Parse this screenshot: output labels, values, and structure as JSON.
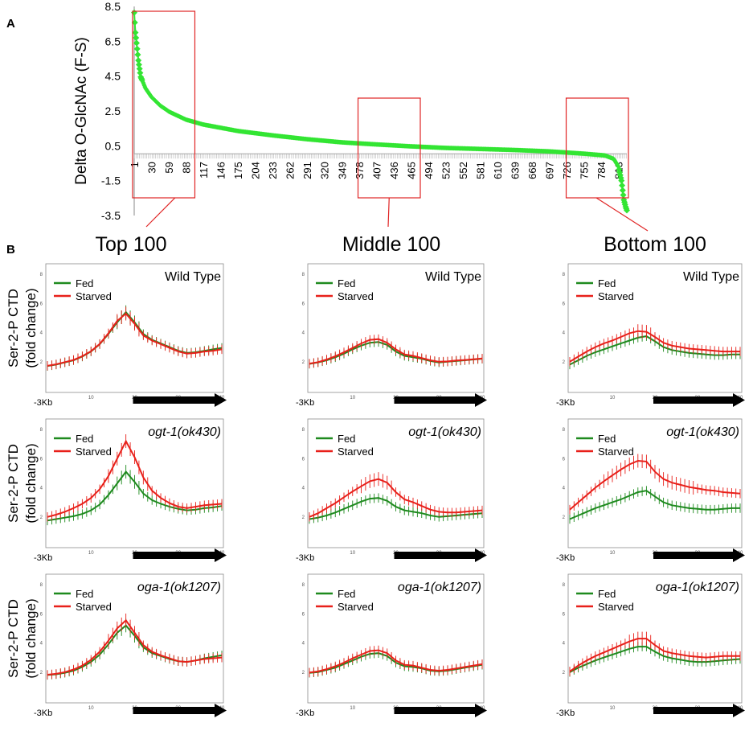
{
  "chart_data": [
    {
      "id": "A",
      "panel_label": "A",
      "type": "scatter",
      "ylabel": "Delta O-GlcNAc (F-S)",
      "ylim": [
        -3.5,
        8.5
      ],
      "yticks": [
        "8.5",
        "6.5",
        "4.5",
        "2.5",
        "0.5",
        "-1.5",
        "-3.5"
      ],
      "xticks": [
        "1",
        "30",
        "59",
        "88",
        "117",
        "146",
        "175",
        "204",
        "233",
        "262",
        "291",
        "320",
        "349",
        "378",
        "407",
        "436",
        "465",
        "494",
        "523",
        "552",
        "581",
        "610",
        "639",
        "668",
        "697",
        "726",
        "755",
        "784",
        "813"
      ],
      "n_points": 827,
      "anchors": [
        [
          1,
          8.15
        ],
        [
          3,
          7.0
        ],
        [
          5,
          6.4
        ],
        [
          8,
          5.4
        ],
        [
          12,
          4.45
        ],
        [
          20,
          3.8
        ],
        [
          30,
          3.3
        ],
        [
          45,
          2.8
        ],
        [
          60,
          2.45
        ],
        [
          88,
          2.0
        ],
        [
          117,
          1.72
        ],
        [
          175,
          1.35
        ],
        [
          233,
          1.1
        ],
        [
          291,
          0.88
        ],
        [
          349,
          0.7
        ],
        [
          407,
          0.58
        ],
        [
          465,
          0.47
        ],
        [
          523,
          0.38
        ],
        [
          581,
          0.32
        ],
        [
          639,
          0.26
        ],
        [
          697,
          0.18
        ],
        [
          755,
          0.05
        ],
        [
          790,
          -0.05
        ],
        [
          805,
          -0.25
        ],
        [
          813,
          -0.7
        ],
        [
          818,
          -1.5
        ],
        [
          822,
          -2.6
        ],
        [
          825,
          -3.0
        ],
        [
          827,
          -3.2
        ]
      ],
      "highlight_boxes": [
        {
          "label": "Top 100",
          "from": 1,
          "to": 100
        },
        {
          "label": "Middle 100",
          "from": 379,
          "to": 478
        },
        {
          "label": "Bottom 100",
          "from": 728,
          "to": 827
        }
      ],
      "color": "#33e533"
    }
  ],
  "panel_b_label": "B",
  "column_titles": [
    "Top 100",
    "Middle 100",
    "Bottom 100"
  ],
  "row_ylabel_line1": "Ser-2-P CTD",
  "row_ylabel_line2": "(fold change)",
  "x_start_label": "-3Kb",
  "genotypes": [
    "Wild Type",
    "ogt-1(ok430)",
    "oga-1(ok1207)"
  ],
  "legend": {
    "fed": "Fed",
    "starved": "Starved"
  },
  "line_colors": {
    "fed": "#1e8a1e",
    "starved": "#e8201a"
  },
  "profile_xticks": [
    "10",
    "20",
    "30",
    "40"
  ],
  "profile_yticks": [
    "2",
    "4",
    "6",
    "8"
  ],
  "profile_x": [
    0,
    2,
    4,
    6,
    8,
    10,
    12,
    14,
    16,
    18,
    20,
    22,
    24,
    26,
    28,
    30,
    32,
    34,
    36,
    38,
    40
  ],
  "profiles": [
    {
      "genotype": "Wild Type",
      "column": "Top 100",
      "fed": [
        1.7,
        1.8,
        1.95,
        2.1,
        2.35,
        2.7,
        3.2,
        3.9,
        4.7,
        5.4,
        4.7,
        3.9,
        3.5,
        3.25,
        3.0,
        2.75,
        2.6,
        2.65,
        2.75,
        2.85,
        2.95
      ],
      "starved": [
        1.72,
        1.82,
        1.97,
        2.12,
        2.38,
        2.72,
        3.22,
        3.95,
        4.8,
        5.3,
        4.6,
        3.8,
        3.45,
        3.2,
        2.95,
        2.7,
        2.55,
        2.6,
        2.7,
        2.75,
        2.85
      ]
    },
    {
      "genotype": "Wild Type",
      "column": "Middle 100",
      "fed": [
        1.85,
        1.95,
        2.1,
        2.3,
        2.55,
        2.85,
        3.1,
        3.3,
        3.35,
        3.15,
        2.7,
        2.4,
        2.3,
        2.2,
        2.05,
        1.95,
        2.0,
        2.05,
        2.1,
        2.15,
        2.2
      ],
      "starved": [
        1.87,
        1.97,
        2.15,
        2.38,
        2.65,
        2.95,
        3.25,
        3.5,
        3.55,
        3.3,
        2.85,
        2.5,
        2.4,
        2.25,
        2.1,
        2.0,
        2.02,
        2.08,
        2.12,
        2.17,
        2.22
      ]
    },
    {
      "genotype": "Wild Type",
      "column": "Bottom 100",
      "fed": [
        1.8,
        2.1,
        2.4,
        2.65,
        2.85,
        3.05,
        3.25,
        3.45,
        3.65,
        3.75,
        3.4,
        3.0,
        2.8,
        2.7,
        2.6,
        2.55,
        2.5,
        2.45,
        2.45,
        2.5,
        2.5
      ],
      "starved": [
        2.0,
        2.35,
        2.7,
        3.0,
        3.25,
        3.45,
        3.7,
        3.95,
        4.1,
        4.05,
        3.7,
        3.3,
        3.1,
        3.0,
        2.9,
        2.85,
        2.8,
        2.75,
        2.7,
        2.7,
        2.7
      ]
    },
    {
      "genotype": "ogt-1(ok430)",
      "column": "Top 100",
      "fed": [
        1.75,
        1.85,
        1.95,
        2.05,
        2.2,
        2.45,
        2.85,
        3.5,
        4.3,
        5.1,
        4.4,
        3.6,
        3.15,
        2.9,
        2.7,
        2.55,
        2.45,
        2.5,
        2.6,
        2.65,
        2.75
      ],
      "starved": [
        2.0,
        2.15,
        2.35,
        2.6,
        2.9,
        3.3,
        3.9,
        4.8,
        6.0,
        7.2,
        6.1,
        4.7,
        3.8,
        3.3,
        2.95,
        2.7,
        2.6,
        2.7,
        2.8,
        2.85,
        2.9
      ]
    },
    {
      "genotype": "ogt-1(ok430)",
      "column": "Middle 100",
      "fed": [
        1.85,
        1.95,
        2.1,
        2.3,
        2.55,
        2.8,
        3.05,
        3.25,
        3.3,
        3.1,
        2.7,
        2.45,
        2.35,
        2.25,
        2.1,
        2.0,
        2.05,
        2.1,
        2.15,
        2.2,
        2.25
      ],
      "starved": [
        2.0,
        2.25,
        2.6,
        2.95,
        3.35,
        3.75,
        4.1,
        4.45,
        4.6,
        4.35,
        3.7,
        3.2,
        3.0,
        2.75,
        2.5,
        2.35,
        2.3,
        2.3,
        2.35,
        2.4,
        2.45
      ]
    },
    {
      "genotype": "ogt-1(ok430)",
      "column": "Bottom 100",
      "fed": [
        1.85,
        2.1,
        2.35,
        2.6,
        2.8,
        3.0,
        3.2,
        3.45,
        3.7,
        3.8,
        3.4,
        3.0,
        2.8,
        2.7,
        2.6,
        2.55,
        2.5,
        2.5,
        2.55,
        2.6,
        2.6
      ],
      "starved": [
        2.5,
        3.0,
        3.5,
        4.0,
        4.45,
        4.85,
        5.25,
        5.6,
        5.85,
        5.8,
        5.1,
        4.6,
        4.35,
        4.2,
        4.05,
        3.95,
        3.85,
        3.8,
        3.7,
        3.65,
        3.6
      ]
    },
    {
      "genotype": "oga-1(ok1207)",
      "column": "Top 100",
      "fed": [
        1.8,
        1.85,
        1.95,
        2.1,
        2.35,
        2.7,
        3.2,
        3.9,
        4.7,
        5.2,
        4.5,
        3.7,
        3.3,
        3.1,
        2.9,
        2.75,
        2.7,
        2.8,
        2.95,
        3.05,
        3.15
      ],
      "starved": [
        1.82,
        1.88,
        2.0,
        2.18,
        2.45,
        2.85,
        3.4,
        4.15,
        5.0,
        5.55,
        4.7,
        3.85,
        3.4,
        3.15,
        2.95,
        2.75,
        2.7,
        2.8,
        2.9,
        2.95,
        3.0
      ]
    },
    {
      "genotype": "oga-1(ok1207)",
      "column": "Middle 100",
      "fed": [
        1.95,
        2.0,
        2.15,
        2.3,
        2.55,
        2.8,
        3.05,
        3.25,
        3.3,
        3.1,
        2.65,
        2.4,
        2.35,
        2.25,
        2.1,
        2.05,
        2.1,
        2.2,
        2.3,
        2.4,
        2.5
      ],
      "starved": [
        1.97,
        2.05,
        2.2,
        2.4,
        2.65,
        2.95,
        3.2,
        3.45,
        3.5,
        3.3,
        2.8,
        2.5,
        2.45,
        2.3,
        2.15,
        2.1,
        2.15,
        2.25,
        2.35,
        2.45,
        2.55
      ]
    },
    {
      "genotype": "oga-1(ok1207)",
      "column": "Bottom 100",
      "fed": [
        2.0,
        2.3,
        2.55,
        2.8,
        3.0,
        3.2,
        3.4,
        3.6,
        3.75,
        3.75,
        3.4,
        3.1,
        2.95,
        2.85,
        2.75,
        2.7,
        2.7,
        2.75,
        2.8,
        2.85,
        2.9
      ],
      "starved": [
        2.05,
        2.45,
        2.8,
        3.1,
        3.35,
        3.6,
        3.85,
        4.1,
        4.3,
        4.3,
        3.85,
        3.45,
        3.3,
        3.2,
        3.1,
        3.05,
        3.0,
        3.05,
        3.1,
        3.1,
        3.1
      ]
    }
  ]
}
